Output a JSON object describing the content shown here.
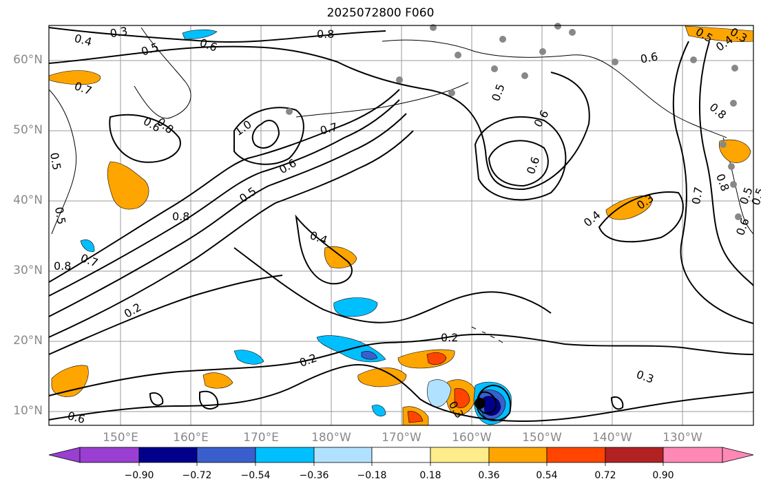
{
  "title": "2025072800 F060",
  "lat_labels": [
    "60°N",
    "50°N",
    "40°N",
    "30°N",
    "20°N",
    "10°N"
  ],
  "lon_labels": [
    "150°E",
    "160°E",
    "170°E",
    "180°W",
    "170°W",
    "160°W",
    "150°W",
    "140°W",
    "130°W"
  ],
  "contour_labels": [
    "0.3",
    "0.4",
    "0.5",
    "0.6",
    "0.8",
    "0.6",
    "0.5",
    "0.3",
    "0.4",
    "0.5",
    "0.6",
    "0.7",
    "0.8",
    "0.5",
    "0.6",
    "0.8",
    "1.0",
    "0.7",
    "0.6",
    "0.5",
    "0.6",
    "0.7",
    "0.5",
    "0.4",
    "0.3",
    "0.8",
    "0.8",
    "0.7",
    "0.4",
    "0.2",
    "0.2",
    "0.2",
    "0.3",
    "0.3",
    "0.8",
    "0.6",
    "0.5",
    "0.5",
    "0.6"
  ],
  "colorbar": {
    "ticks": [
      "−0.90",
      "−0.72",
      "−0.54",
      "−0.36",
      "−0.18",
      "0.18",
      "0.36",
      "0.54",
      "0.72",
      "0.90"
    ],
    "colors": [
      "#9a3fd1",
      "#00008b",
      "#3a5fcd",
      "#00bfff",
      "#b0e2ff",
      "#ffffff",
      "#ffec8b",
      "#ffa500",
      "#ff4500",
      "#b22222",
      "#ff88b5"
    ]
  },
  "colors": {
    "pos_fill": "#ffa500",
    "pos_strong": "#ff4500",
    "pos_max": "#b22222",
    "neg_fill": "#00bfff",
    "neg_light": "#b0e2ff",
    "neg_mid": "#3a5fcd",
    "neg_strong": "#00008b"
  }
}
